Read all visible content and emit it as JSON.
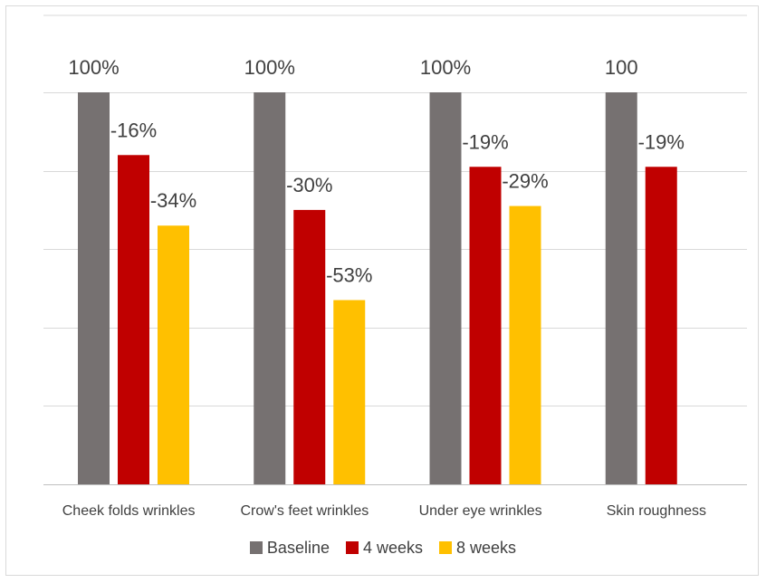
{
  "chart_data": {
    "type": "bar",
    "categories": [
      "Cheek folds wrinkles",
      "Crow's feet wrinkles",
      "Under eye wrinkles",
      "Skin roughness"
    ],
    "series": [
      {
        "name": "Baseline",
        "color": "#767171",
        "values": [
          100,
          100,
          100,
          100
        ],
        "labels": [
          "100%",
          "100%",
          "100%",
          "100"
        ]
      },
      {
        "name": "4 weeks",
        "color": "#C00000",
        "values": [
          84,
          70,
          81,
          81
        ],
        "labels": [
          "-16%",
          "-30%",
          "-19%",
          "-19%"
        ]
      },
      {
        "name": "8 weeks",
        "color": "#FFC000",
        "values": [
          66,
          47,
          71,
          null
        ],
        "labels": [
          "-34%",
          "-53%",
          "-29%",
          ""
        ]
      }
    ],
    "ylim": [
      0,
      100
    ],
    "grid": true,
    "legend": "bottom"
  }
}
